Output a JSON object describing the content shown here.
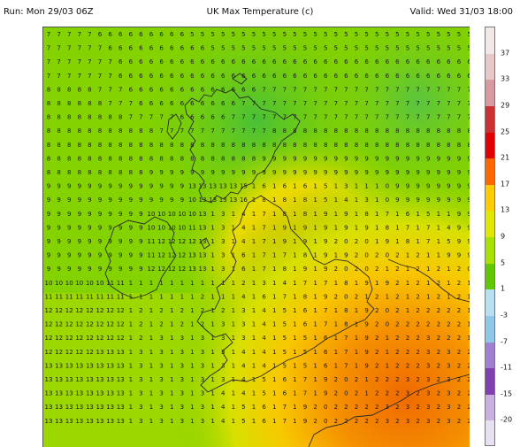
{
  "header": {
    "run_label": "Run: Mon 29/03 06Z",
    "title": "UK Max Temperature (c)",
    "valid_label": "Valid: Wed 31/03 18:00"
  },
  "scale": {
    "labels": [
      "37",
      "33",
      "29",
      "25",
      "21",
      "17",
      "13",
      "9",
      "5",
      "1",
      "-3",
      "-7",
      "-11",
      "-15",
      "-20"
    ],
    "colors": [
      "#f2e8e8",
      "#e6c8c8",
      "#d89aa0",
      "#cc3030",
      "#e00000",
      "#ff6600",
      "#ffcc00",
      "#e0e800",
      "#a8e000",
      "#60c800",
      "#b8e0f0",
      "#90c8ea",
      "#a080d0",
      "#8040b0",
      "#c8b0e0",
      "#e8e0f0"
    ]
  },
  "map": {
    "grid_values": [
      "777776666666665555555555555555555555555555",
      "777777666666666655555555555555555555555555",
      "777777766666666666666666666666666666666666",
      "777777766666666666666666666666666666666666",
      "888887776666666666666777777777777777777777",
      "888888777666666666677777777777777777777777",
      "888888887777766666777777777777777777777777",
      "888888888887777777777788888888888888888888",
      "888888888888888888888888888888888888888888",
      "888888888888888888888999999999999999999999",
      "888888888899999999999999999999999999999999",
      "999999999999991313131313151616161513111099999999",
      "999999999999991013131313161818181514131099999999",
      "999999999910101010101313141718181919181716151199",
      "999999999910101010111313141719191919191817171499",
      "999999999911121212121313141719191920201918171599",
      "999999999911121212131313161717181919202021211999",
      "999999999912121212131313161718191920202121212120",
      "10101010101011111111111111121314171718191921212121",
      "11111111111111111111111211141617181920212121212121",
      "12121212121212121212121212131415161718192021222221",
      "12121212121212121212121213131415161718192022222221",
      "12121212121212121213131313131415151617192122232221",
      "12121212121313131313131313141415151617192122232322",
      "13131313131313131313131313141415151617192122232322",
      "13131313131313131313131313141516171920212223232322",
      "13131313131313131313131314141516171920212223232322",
      "13131313131313131313131314151617192022222323232322",
      "13131313131313131313131314151617192022222323232322"
    ]
  }
}
